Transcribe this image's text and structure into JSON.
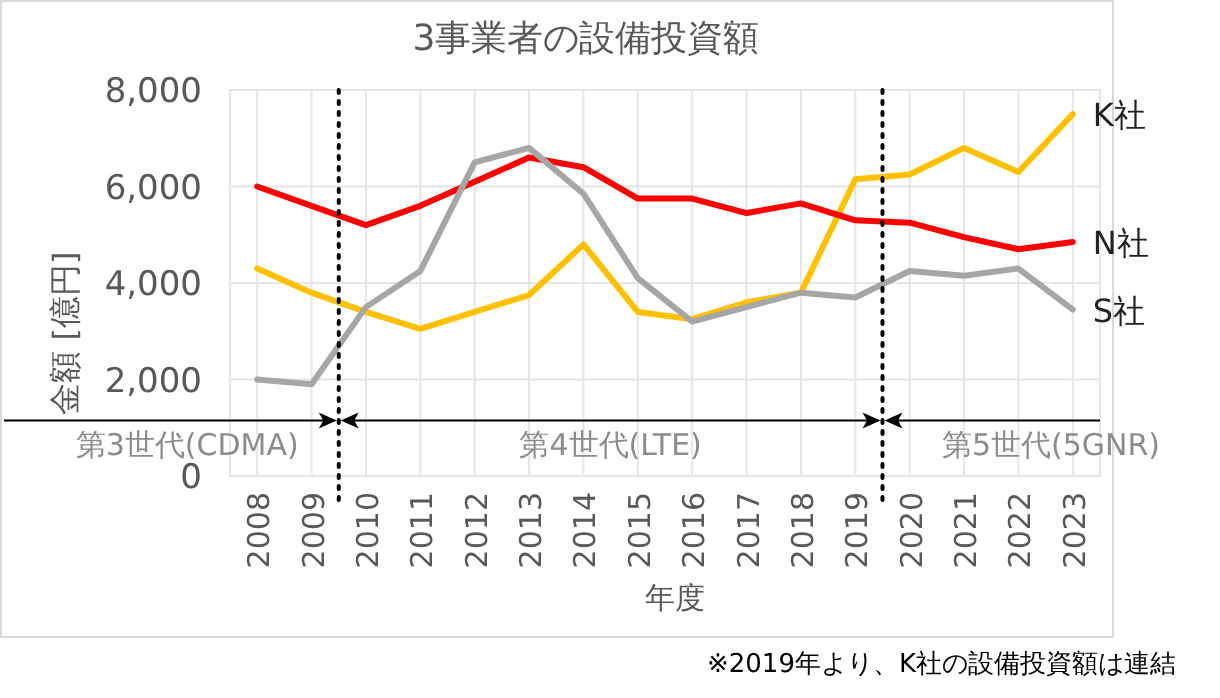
{
  "chart_data": {
    "type": "line",
    "title": "3事業者の設備投資額",
    "xlabel": "年度",
    "ylabel": "金額 [億円]",
    "x": [
      2008,
      2009,
      2010,
      2011,
      2012,
      2013,
      2014,
      2015,
      2016,
      2017,
      2018,
      2019,
      2020,
      2021,
      2022,
      2023
    ],
    "xlim": [
      2007.5,
      2023.5
    ],
    "xticks": [
      2008,
      2009,
      2010,
      2011,
      2012,
      2013,
      2014,
      2015,
      2016,
      2017,
      2018,
      2019,
      2020,
      2021,
      2022,
      2023
    ],
    "ylim": [
      0,
      8000
    ],
    "yticks": [
      {
        "value": 0,
        "label": "0"
      },
      {
        "value": 2000,
        "label": "2,000"
      },
      {
        "value": 4000,
        "label": "4,000"
      },
      {
        "value": 6000,
        "label": "6,000"
      },
      {
        "value": 8000,
        "label": "8,000"
      }
    ],
    "series": [
      {
        "name": "K社",
        "color": "#ffc000",
        "values": [
          4300,
          3800,
          3400,
          3050,
          3400,
          3750,
          4800,
          3400,
          3250,
          3600,
          3800,
          6150,
          6250,
          6800,
          6300,
          7500
        ]
      },
      {
        "name": "N社",
        "color": "#ff0000",
        "values": [
          6000,
          5600,
          5200,
          5600,
          6100,
          6600,
          6400,
          5750,
          5750,
          5450,
          5650,
          5300,
          5250,
          4950,
          4700,
          4850
        ]
      },
      {
        "name": "S社",
        "color": "#a6a6a6",
        "values": [
          2000,
          1900,
          3500,
          4250,
          6500,
          6800,
          5850,
          4100,
          3200,
          3500,
          3800,
          3700,
          4250,
          4150,
          4300,
          3450
        ]
      }
    ],
    "ref_lines": [
      {
        "axis": "x",
        "value": 2009.5,
        "color": "#000000",
        "line_style": "dotted"
      },
      {
        "axis": "x",
        "value": 2019.5,
        "color": "#000000",
        "line_style": "dotted"
      }
    ],
    "annotations": [
      "第3世代(CDMA)",
      "第4世代(LTE)",
      "第5世代(5GNR)",
      "※2019年より、K社の設備投資額は連結"
    ],
    "grid": true,
    "legend": false,
    "marker": "none",
    "line_style": "solid"
  }
}
